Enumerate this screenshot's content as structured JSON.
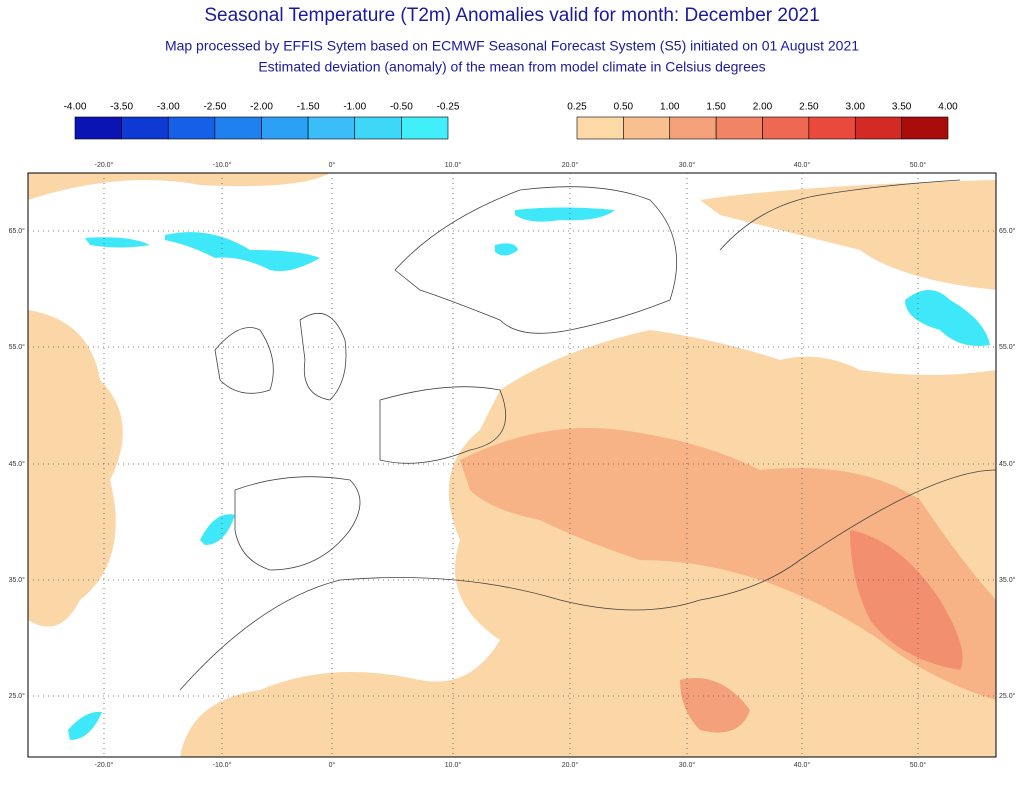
{
  "header": {
    "title": "Seasonal Temperature (T2m) Anomalies valid for month: December 2021",
    "subtitle": [
      "Map processed by EFFIS Sytem based on ECMWF Seasonal Forecast System (S5) initiated on 01 August 2021",
      "Estimated deviation (anomaly) of the mean from model climate in Celsius degrees"
    ]
  },
  "legend": {
    "cold": {
      "labels": [
        "-4.00",
        "-3.50",
        "-3.00",
        "-2.50",
        "-2.00",
        "-1.50",
        "-1.00",
        "-0.50",
        "-0.25"
      ],
      "colors": [
        "#0a14b4",
        "#0c3ad2",
        "#1560e6",
        "#1f80f0",
        "#2ba0f5",
        "#3abef8",
        "#3fd7f8",
        "#42eefa"
      ]
    },
    "warm": {
      "labels": [
        "0.25",
        "0.50",
        "1.00",
        "1.50",
        "2.00",
        "2.50",
        "3.00",
        "3.50",
        "4.00"
      ],
      "colors": [
        "#fcd9a6",
        "#f9c08f",
        "#f5a27a",
        "#f28466",
        "#ef6852",
        "#e94a3d",
        "#d42a25",
        "#a80d0c"
      ]
    }
  },
  "map": {
    "lon_labels": [
      "-20.0°",
      "-10.0°",
      "0°",
      "10.0°",
      "20.0°",
      "30.0°",
      "40.0°",
      "50.0°"
    ],
    "lat_labels": [
      "65.0°",
      "55.0°",
      "45.0°",
      "35.0°",
      "25.0°"
    ]
  }
}
